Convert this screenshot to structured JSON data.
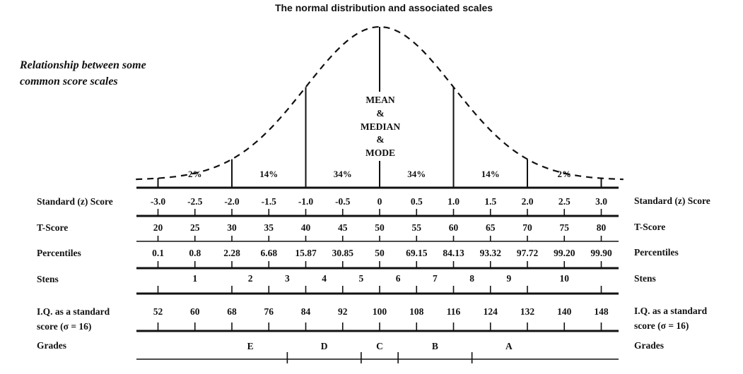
{
  "title": "The normal distribution and associated scales",
  "subtitle_lines": [
    "Relationship between some",
    "common score scales"
  ],
  "center_label_lines": [
    "MEAN",
    "&",
    "MEDIAN",
    "&",
    "MODE"
  ],
  "curve": {
    "type": "normal",
    "z_range": [
      -3.0,
      3.0
    ],
    "dividers_at_z": [
      -2,
      -1,
      0,
      1,
      2,
      3
    ]
  },
  "region_percentages": [
    {
      "z": -2.5,
      "label": "2%"
    },
    {
      "z": -1.5,
      "label": "14%"
    },
    {
      "z": -0.5,
      "label": "34%"
    },
    {
      "z": 0.5,
      "label": "34%"
    },
    {
      "z": 1.5,
      "label": "14%"
    },
    {
      "z": 2.5,
      "label": "2%"
    }
  ],
  "rows": {
    "z": {
      "label": "Standard (z) Score",
      "values": [
        "-3.0",
        "-2.5",
        "-2.0",
        "-1.5",
        "-1.0",
        "-0.5",
        "0",
        "0.5",
        "1.0",
        "1.5",
        "2.0",
        "2.5",
        "3.0"
      ]
    },
    "t": {
      "label": "T-Score",
      "values": [
        "20",
        "25",
        "30",
        "35",
        "40",
        "45",
        "50",
        "55",
        "60",
        "65",
        "70",
        "75",
        "80"
      ]
    },
    "percentiles": {
      "label": "Percentiles",
      "values": [
        "0.1",
        "0.8",
        "2.28",
        "6.68",
        "15.87",
        "30.85",
        "50",
        "69.15",
        "84.13",
        "93.32",
        "97.72",
        "99.20",
        "99.90"
      ]
    },
    "stens": {
      "label": "Stens",
      "values": [
        {
          "label": "1",
          "z": -2.5
        },
        {
          "label": "2",
          "z": -1.75
        },
        {
          "label": "3",
          "z": -1.25
        },
        {
          "label": "4",
          "z": -0.75
        },
        {
          "label": "5",
          "z": -0.25
        },
        {
          "label": "6",
          "z": 0.25
        },
        {
          "label": "7",
          "z": 0.75
        },
        {
          "label": "8",
          "z": 1.25
        },
        {
          "label": "9",
          "z": 1.75
        },
        {
          "label": "10",
          "z": 2.5
        }
      ],
      "ticks_at_z": [
        -3.0,
        -2.0,
        -1.5,
        -1.0,
        -0.5,
        0,
        0.5,
        1.0,
        1.5,
        2.0,
        3.0
      ]
    },
    "iq": {
      "label_lines": [
        "I.Q. as a standard",
        "score (σ = 16)"
      ],
      "values": [
        "52",
        "60",
        "68",
        "76",
        "84",
        "92",
        "100",
        "108",
        "116",
        "124",
        "132",
        "140",
        "148"
      ]
    },
    "grades": {
      "label": "Grades",
      "values": [
        {
          "label": "E",
          "z": -1.75
        },
        {
          "label": "D",
          "z": -0.75
        },
        {
          "label": "C",
          "z": 0
        },
        {
          "label": "B",
          "z": 0.75
        },
        {
          "label": "A",
          "z": 1.75
        }
      ],
      "ticks_at_z": [
        -1.25,
        -0.25,
        0.25,
        1.25
      ]
    }
  }
}
